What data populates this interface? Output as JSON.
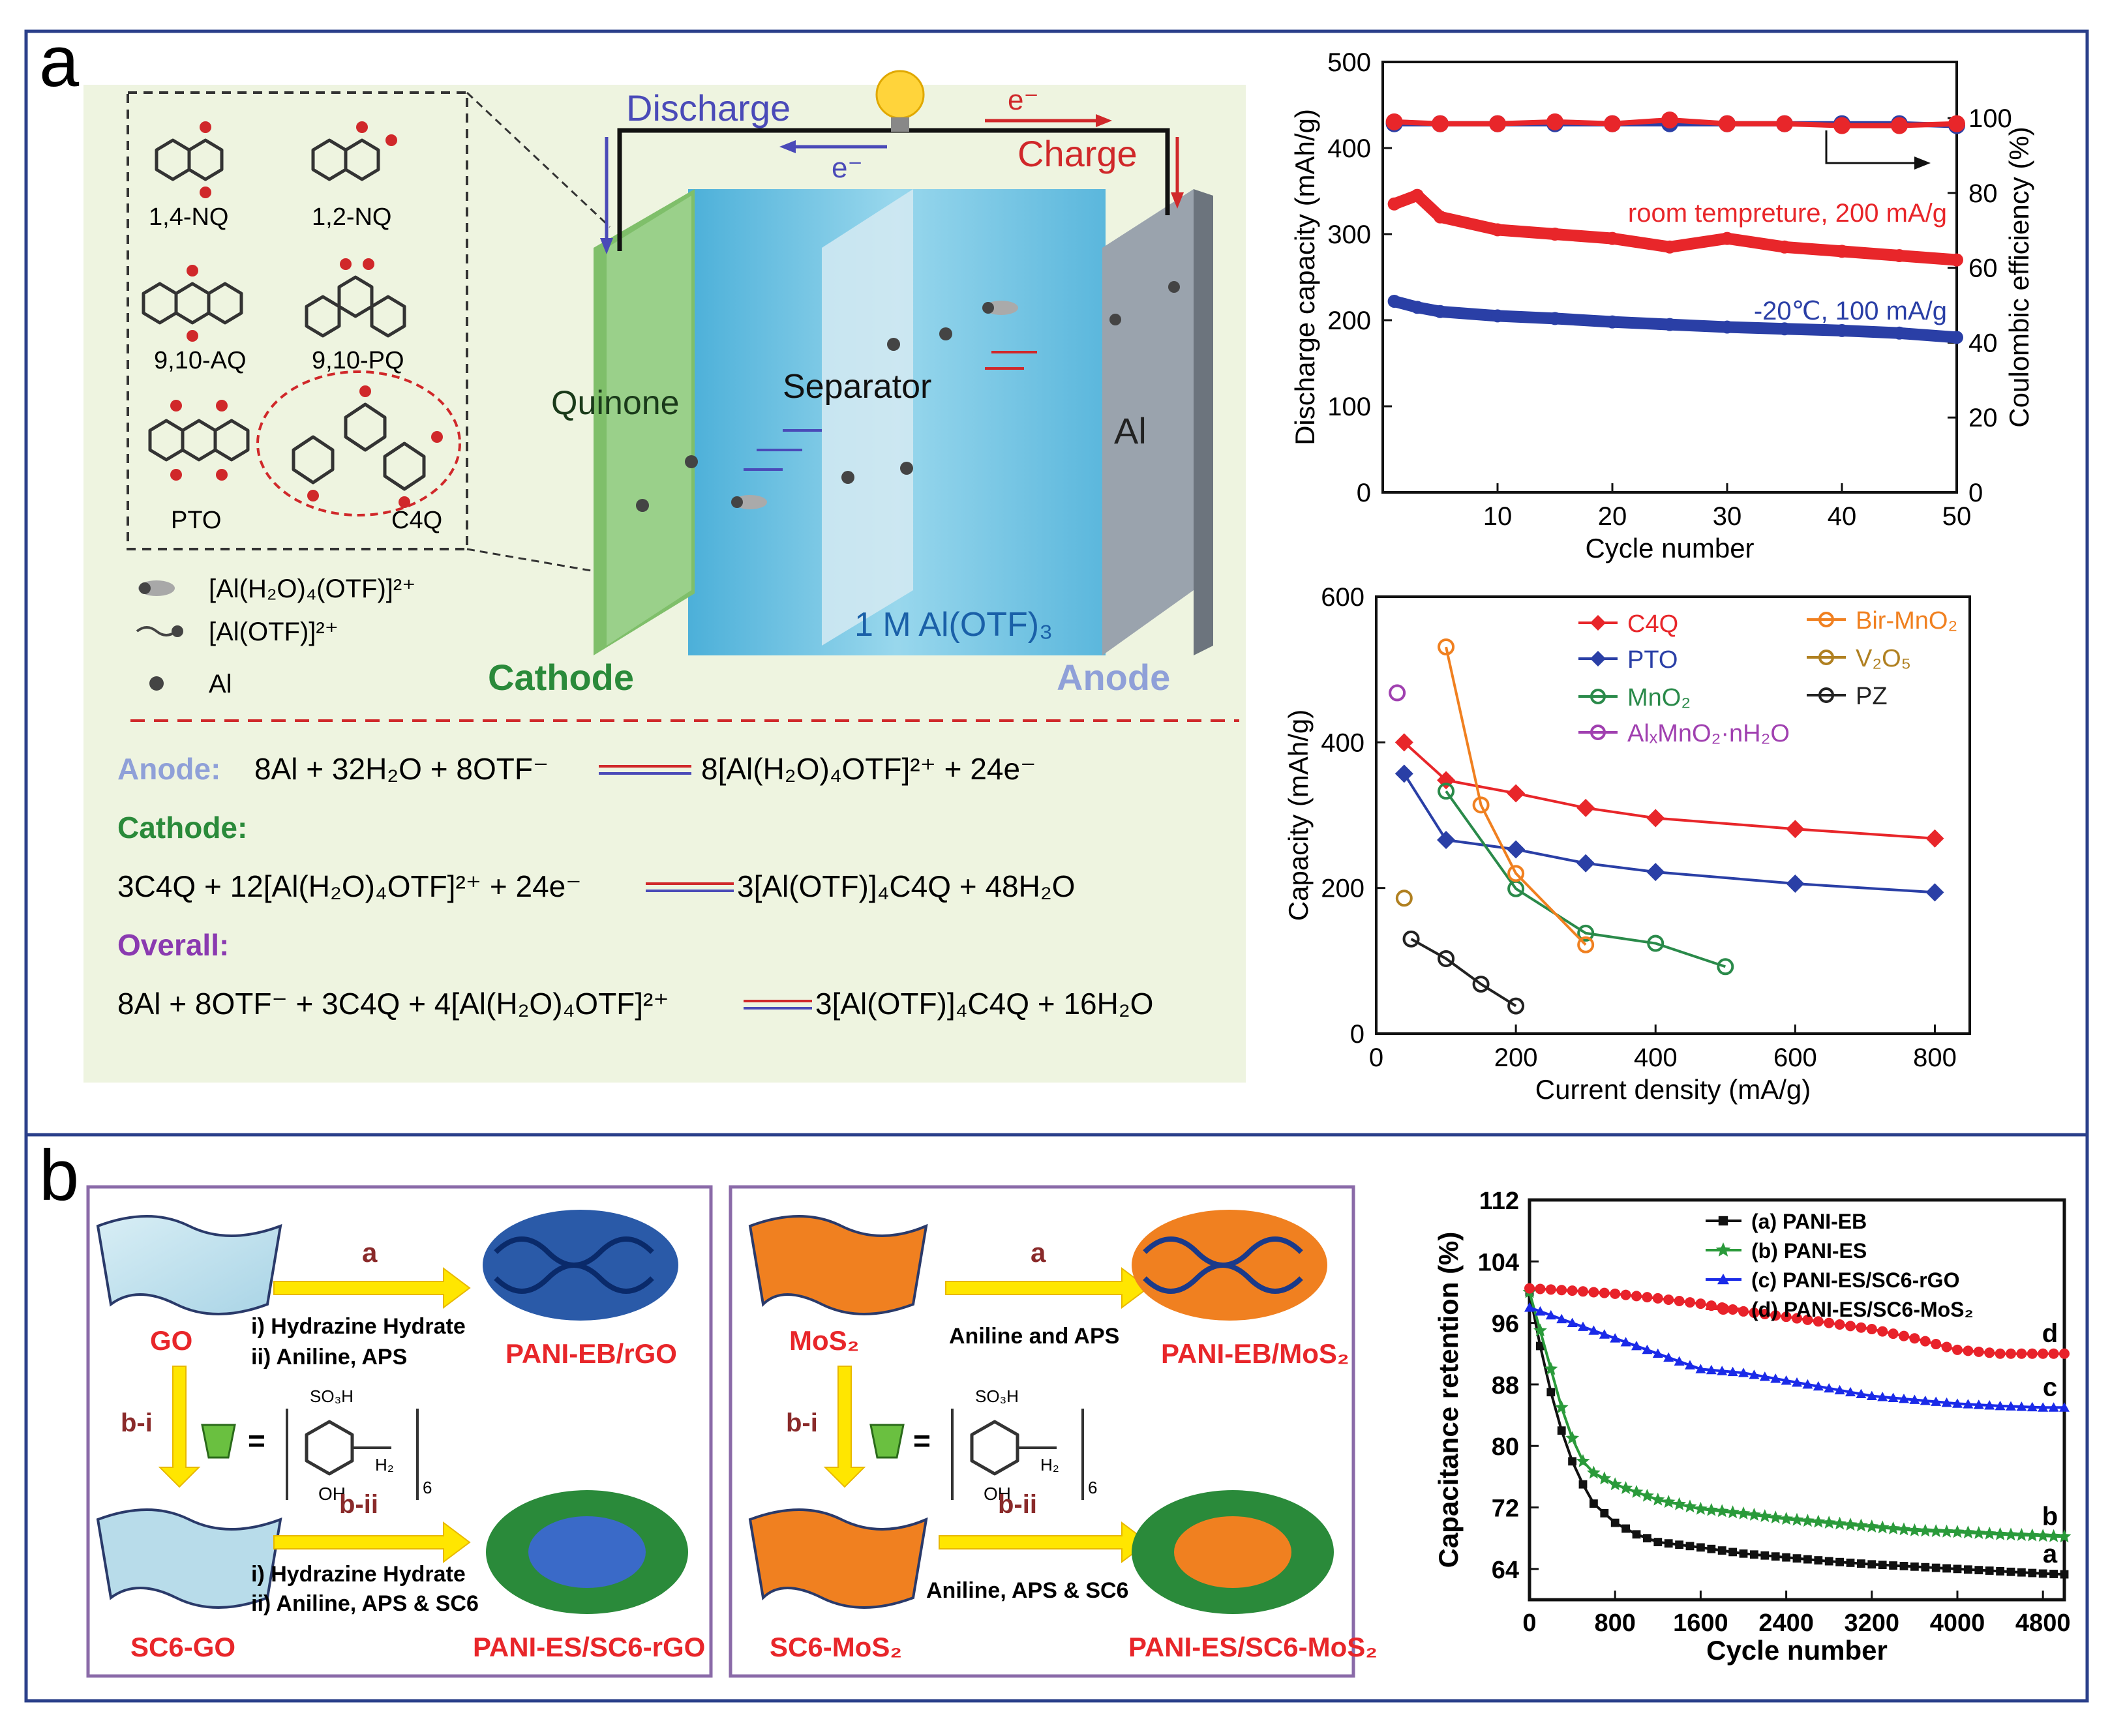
{
  "panel_a": {
    "label": "a",
    "battery": {
      "discharge": "Discharge",
      "charge": "Charge",
      "electron": "e⁻",
      "quinone": "Quinone",
      "separator": "Separator",
      "al": "Al",
      "electrolyte": "1 M Al(OTF)₃",
      "cathode": "Cathode",
      "anode": "Anode"
    },
    "molecules": [
      "1,4-NQ",
      "1,2-NQ",
      "9,10-AQ",
      "9,10-PQ",
      "PTO",
      "C4Q"
    ],
    "legend": [
      "[Al(H₂O)₄(OTF)]²⁺",
      "[Al(OTF)]²⁺",
      "Al"
    ],
    "reactions": {
      "anode_label": "Anode:",
      "anode_left": "8Al + 32H₂O + 8OTF⁻",
      "anode_right": "8[Al(H₂O)₄OTF]²⁺ + 24e⁻",
      "cathode_label": "Cathode:",
      "cathode_left": "3C4Q + 12[Al(H₂O)₄OTF]²⁺ + 24e⁻",
      "cathode_right": "3[Al(OTF)]₄C4Q + 48H₂O",
      "overall_label": "Overall:",
      "overall_left": "8Al + 8OTF⁻ + 3C4Q + 4[Al(H₂O)₄OTF]²⁺",
      "overall_right": "3[Al(OTF)]₄C4Q + 16H₂O"
    }
  },
  "panel_b": {
    "label": "b",
    "scheme1": {
      "start": "GO",
      "step_a": "a",
      "cond_a1": "i) Hydrazine Hydrate",
      "cond_a2": "ii) Aniline, APS",
      "product_a": "PANI-EB/rGO",
      "step_bi": "b-i",
      "eq": "=",
      "so3h": "SO₃H",
      "oh": "OH",
      "ch2": "H₂",
      "n6": "6",
      "mid": "SC6-GO",
      "step_bii": "b-ii",
      "cond_b1": "i) Hydrazine Hydrate",
      "cond_b2": "ii) Aniline, APS & SC6",
      "product_b": "PANI-ES/SC6-rGO"
    },
    "scheme2": {
      "start": "MoS₂",
      "step_a": "a",
      "cond_a1": "Aniline and APS",
      "product_a": "PANI-EB/MoS₂",
      "step_bi": "b-i",
      "eq": "=",
      "so3h": "SO₃H",
      "oh": "OH",
      "ch2": "H₂",
      "n6": "6",
      "mid": "SC6-MoS₂",
      "step_bii": "b-ii",
      "cond_b1": "Aniline, APS & SC6",
      "product_b": "PANI-ES/SC6-MoS₂"
    }
  },
  "chart_data": [
    {
      "type": "scatter",
      "xlabel": "Cycle number",
      "ylabel": "Discharge capacity (mAh/g)",
      "y2label": "Coulombic efficiency (%)",
      "xlim": [
        0,
        50
      ],
      "ylim": [
        0,
        500
      ],
      "y2lim": [
        0,
        115
      ],
      "xticks": [
        10,
        20,
        30,
        40,
        50
      ],
      "yticks": [
        0,
        100,
        200,
        300,
        400,
        500
      ],
      "y2ticks": [
        0,
        20,
        40,
        60,
        80,
        100
      ],
      "annotations": [
        "room tempreture, 200 mA/g",
        "-20℃, 100 mA/g"
      ],
      "series": [
        {
          "color": "#e8262a",
          "axis": "left",
          "x": [
            1,
            3,
            5,
            10,
            15,
            20,
            25,
            30,
            35,
            40,
            45,
            50
          ],
          "values": [
            335,
            345,
            320,
            305,
            300,
            295,
            285,
            295,
            285,
            280,
            275,
            270
          ]
        },
        {
          "color": "#2a3fa6",
          "axis": "left",
          "x": [
            1,
            3,
            5,
            10,
            15,
            20,
            25,
            30,
            35,
            40,
            45,
            50
          ],
          "values": [
            222,
            215,
            210,
            205,
            202,
            198,
            195,
            192,
            190,
            188,
            185,
            180
          ]
        },
        {
          "color": "#2a3fa6",
          "axis": "right",
          "x": [
            1,
            5,
            10,
            15,
            20,
            25,
            30,
            35,
            40,
            45,
            50
          ],
          "values": [
            98.5,
            98.5,
            98.5,
            98.5,
            98.5,
            98.5,
            98.5,
            98.5,
            98.5,
            98.5,
            98
          ]
        },
        {
          "color": "#e8262a",
          "axis": "right",
          "x": [
            1,
            5,
            10,
            15,
            20,
            25,
            30,
            35,
            40,
            45,
            50
          ],
          "values": [
            99,
            98.5,
            98.5,
            99,
            98.5,
            99.5,
            98.5,
            98.5,
            98,
            98,
            98.5
          ]
        }
      ]
    },
    {
      "type": "line",
      "xlabel": "Current density (mA/g)",
      "ylabel": "Capacity (mAh/g)",
      "xlim": [
        0,
        850
      ],
      "ylim": [
        0,
        600
      ],
      "xticks": [
        0,
        200,
        400,
        600,
        800
      ],
      "yticks": [
        0,
        200,
        400,
        600
      ],
      "series": [
        {
          "name": "C4Q",
          "color": "#e8262a",
          "marker": "diamond",
          "x": [
            40,
            100,
            200,
            300,
            400,
            600,
            800
          ],
          "values": [
            400,
            348,
            330,
            310,
            296,
            281,
            268
          ]
        },
        {
          "name": "PTO",
          "color": "#2a3fa6",
          "marker": "diamond",
          "x": [
            40,
            100,
            200,
            300,
            400,
            600,
            800
          ],
          "values": [
            357,
            266,
            253,
            234,
            222,
            206,
            194
          ]
        },
        {
          "name": "MnO₂",
          "color": "#2a8a4a",
          "marker": "circle",
          "x": [
            100,
            200,
            300,
            400,
            500
          ],
          "values": [
            333,
            199,
            138,
            124,
            92
          ]
        },
        {
          "name": "AlₓMnO₂·nH₂O",
          "color": "#a040b0",
          "marker": "circle",
          "x": [
            30
          ],
          "values": [
            468
          ]
        },
        {
          "name": "Bir-MnO₂",
          "color": "#f08020",
          "marker": "circle",
          "x": [
            100,
            150,
            200,
            300
          ],
          "values": [
            531,
            314,
            220,
            122
          ]
        },
        {
          "name": "V₂O₅",
          "color": "#b08020",
          "marker": "circle",
          "x": [
            40
          ],
          "values": [
            186
          ]
        },
        {
          "name": "PZ",
          "color": "#222222",
          "marker": "circle",
          "x": [
            50,
            100,
            150,
            200
          ],
          "values": [
            130,
            103,
            68,
            38
          ]
        }
      ]
    },
    {
      "type": "line",
      "xlabel": "Cycle number",
      "ylabel": "Capacitance retention (%)",
      "xlim": [
        0,
        5000
      ],
      "ylim": [
        60,
        112
      ],
      "xticks": [
        0,
        800,
        1600,
        2400,
        3200,
        4000,
        4800
      ],
      "yticks": [
        64,
        72,
        80,
        88,
        96,
        104,
        112
      ],
      "series": [
        {
          "name": "(a) PANI-EB",
          "end_label": "a",
          "color": "#111111",
          "marker": "square",
          "x": [
            0,
            100,
            200,
            300,
            400,
            500,
            600,
            800,
            1000,
            1200,
            1600,
            2000,
            2400,
            2800,
            3200,
            3600,
            4000,
            4400,
            4800,
            5000
          ],
          "values": [
            100,
            93,
            87,
            82,
            78,
            75,
            72.5,
            70,
            68.5,
            67.5,
            66.8,
            66,
            65.5,
            65,
            64.6,
            64.3,
            64,
            63.7,
            63.4,
            63.3
          ]
        },
        {
          "name": "(b) PANI-ES",
          "end_label": "b",
          "color": "#2a9a3a",
          "marker": "star",
          "x": [
            0,
            100,
            200,
            300,
            400,
            500,
            600,
            800,
            1000,
            1200,
            1600,
            2000,
            2400,
            2800,
            3200,
            3600,
            4000,
            4400,
            4800,
            5000
          ],
          "values": [
            100,
            95,
            90,
            85,
            81,
            78,
            76.5,
            75,
            74,
            73,
            71.8,
            71.2,
            70.5,
            70,
            69.5,
            69,
            68.8,
            68.5,
            68.3,
            68.2
          ]
        },
        {
          "name": "(c) PANI-ES/SC6-rGO",
          "end_label": "c",
          "color": "#1a2ae8",
          "marker": "triangle",
          "x": [
            0,
            100,
            400,
            800,
            1200,
            1600,
            2000,
            2400,
            2800,
            3200,
            3600,
            4000,
            4400,
            4800,
            5000
          ],
          "values": [
            98,
            97.5,
            96,
            94,
            92,
            90,
            89.5,
            88.5,
            87.5,
            86.5,
            86,
            85.5,
            85.2,
            85,
            85
          ]
        },
        {
          "name": "(d) PANI-ES/SC6-MoS₂",
          "end_label": "d",
          "color": "#e8222a",
          "marker": "circle",
          "x": [
            0,
            400,
            800,
            1200,
            1600,
            2000,
            2400,
            2800,
            3200,
            3600,
            4000,
            4400,
            4800,
            5000
          ],
          "values": [
            100.5,
            100.2,
            99.8,
            99.2,
            98.5,
            97.5,
            96.8,
            96,
            95.2,
            94,
            92.5,
            92,
            92,
            92
          ]
        }
      ]
    }
  ]
}
